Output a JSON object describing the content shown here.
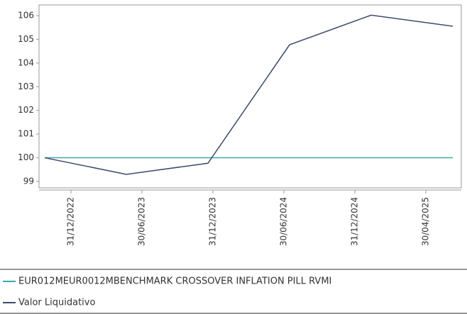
{
  "chart_data": {
    "type": "line",
    "categories": [
      "31/12/2022",
      "30/06/2023",
      "31/12/2023",
      "30/06/2024",
      "31/12/2024",
      "30/04/2025"
    ],
    "series": [
      {
        "name": "EUR012MEUR0012MBENCHMARK CROSSOVER INFLATION PILL RVMI",
        "color": "#3aa9a6",
        "values": [
          100,
          100,
          100,
          100,
          100,
          100
        ]
      },
      {
        "name": "Valor Liquidativo",
        "color": "#3d4a6e",
        "values": [
          100,
          99.3,
          99.77,
          104.77,
          106.02,
          105.55
        ]
      }
    ],
    "ylim": [
      98.73,
      106.45
    ],
    "yticks": [
      99,
      100,
      101,
      102,
      103,
      104,
      105,
      106
    ]
  }
}
